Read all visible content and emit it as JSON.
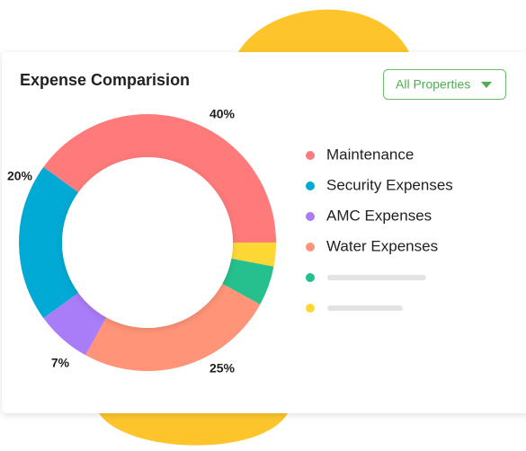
{
  "chart_data": {
    "type": "donut",
    "title": "Expense Comparision",
    "filter": "All Properties",
    "categories": [
      "Maintenance",
      null,
      null,
      "Water Expenses",
      "AMC Expenses",
      "Security Expenses"
    ],
    "values": [
      40,
      3,
      5,
      25,
      7,
      20
    ],
    "value_labels": [
      "40%",
      null,
      null,
      "25%",
      "7%",
      "20%"
    ],
    "colors": [
      "#ff7a7a",
      "#fdd835",
      "#26c08e",
      "#ff9478",
      "#a97cf8",
      "#00aad4"
    ]
  }
}
